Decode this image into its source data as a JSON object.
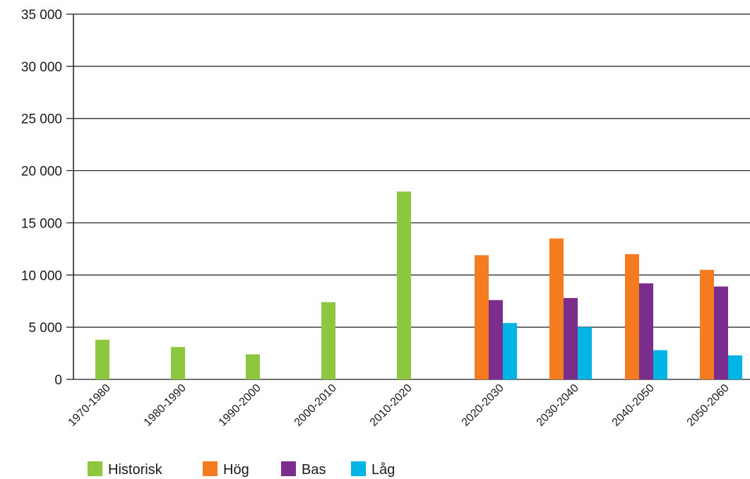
{
  "chart_data": {
    "type": "bar",
    "categories": [
      "1970-1980",
      "1980-1990",
      "1990-2000",
      "2000-2010",
      "2010-2020",
      "2020-2030",
      "2030-2040",
      "2040-2050",
      "2050-2060"
    ],
    "ylim": [
      0,
      35000
    ],
    "yticks": [
      0,
      5000,
      10000,
      15000,
      20000,
      25000,
      30000,
      35000
    ],
    "ytick_labels": [
      "0",
      "5 000",
      "10 000",
      "15 000",
      "20 000",
      "25 000",
      "30 000",
      "35 000"
    ],
    "grid": true,
    "legend_position": "bottom-left",
    "series": [
      {
        "name": "Historisk",
        "color": "#8dc63f",
        "values": [
          3800,
          3100,
          2400,
          7400,
          18000,
          null,
          null,
          null,
          null
        ]
      },
      {
        "name": "Hög",
        "color": "#f47b20",
        "values": [
          null,
          null,
          null,
          null,
          null,
          11900,
          13500,
          12000,
          10500
        ]
      },
      {
        "name": "Bas",
        "color": "#7b2d8e",
        "values": [
          null,
          null,
          null,
          null,
          null,
          7600,
          7800,
          9200,
          8900
        ]
      },
      {
        "name": "Låg",
        "color": "#00b4e6",
        "values": [
          null,
          null,
          null,
          null,
          null,
          5400,
          5000,
          2800,
          2300
        ]
      }
    ]
  }
}
